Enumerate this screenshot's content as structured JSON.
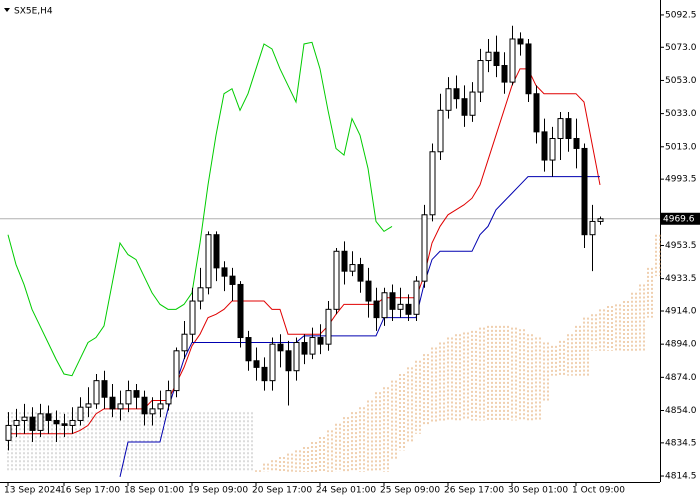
{
  "chart_data": {
    "type": "candlestick",
    "title": "SX5E,H4",
    "categories": [
      "13 Sep 2024",
      null,
      null,
      null,
      null,
      null,
      null,
      "16 Sep 17:00",
      null,
      null,
      null,
      null,
      null,
      null,
      null,
      "18 Sep 01:00",
      null,
      null,
      null,
      null,
      null,
      null,
      null,
      "19 Sep 09:00",
      null,
      null,
      null,
      null,
      null,
      null,
      null,
      "20 Sep 17:00",
      null,
      null,
      null,
      null,
      null,
      null,
      null,
      "24 Sep 01:00",
      null,
      null,
      null,
      null,
      null,
      null,
      null,
      "25 Sep 09:00",
      null,
      null,
      null,
      null,
      null,
      null,
      null,
      "26 Sep 17:00",
      null,
      null,
      null,
      null,
      null,
      null,
      null,
      "30 Sep 01:00",
      null,
      null,
      null,
      null,
      null,
      null,
      null,
      "1 Oct 09:00",
      null,
      null,
      null,
      null,
      null,
      null,
      null,
      null,
      null,
      null
    ],
    "open": [
      4836,
      4845,
      4848,
      4850,
      4842,
      4852,
      4848,
      4846,
      4845,
      4848,
      4856,
      4858,
      4872,
      4862,
      4855,
      4858,
      4866,
      4862,
      4852,
      4855,
      4858,
      4866,
      4890,
      4900,
      4920,
      4928,
      4960,
      4940,
      4935,
      4930,
      4898,
      4884,
      4880,
      4872,
      4894,
      4890,
      4878,
      4895,
      4888,
      4898,
      4894,
      4915,
      4950,
      4938,
      4942,
      4932,
      4920,
      4910,
      4925,
      4915,
      4918,
      4912,
      4932,
      4972,
      5010,
      5035,
      5048,
      5042,
      5032,
      5046,
      5065,
      5070,
      5062,
      5052,
      5078,
      5075,
      5045,
      5022,
      5005,
      5018,
      5030,
      5018,
      5012,
      4960,
      4968,
      null,
      null,
      null,
      null,
      null,
      null,
      null
    ],
    "high": [
      4853,
      4855,
      4858,
      4856,
      4858,
      4857,
      4854,
      4852,
      4856,
      4862,
      4868,
      4876,
      4878,
      4870,
      4866,
      4872,
      4870,
      4866,
      4862,
      4866,
      4872,
      4892,
      4908,
      4928,
      4940,
      4962,
      4962,
      4944,
      4940,
      4932,
      4902,
      4892,
      4886,
      4898,
      4900,
      4896,
      4898,
      4900,
      4904,
      4906,
      4920,
      4952,
      4956,
      4950,
      4946,
      4940,
      4928,
      4928,
      4930,
      4928,
      4924,
      4935,
      4978,
      5015,
      5045,
      5055,
      5056,
      5050,
      5052,
      5072,
      5078,
      5080,
      5070,
      5086,
      5082,
      5078,
      5050,
      5030,
      5025,
      5034,
      5034,
      5030,
      5015,
      4978,
      4971,
      null,
      null,
      null,
      null,
      null,
      null,
      null
    ],
    "low": [
      4830,
      4838,
      4840,
      4835,
      4838,
      4840,
      4835,
      4838,
      4840,
      4845,
      4850,
      4855,
      4855,
      4850,
      4848,
      4853,
      4855,
      4845,
      4845,
      4850,
      4854,
      4862,
      4885,
      4895,
      4915,
      4924,
      4932,
      4926,
      4920,
      4892,
      4878,
      4872,
      4866,
      4866,
      4880,
      4857,
      4872,
      4882,
      4885,
      4888,
      4890,
      4912,
      4930,
      4935,
      4925,
      4910,
      4902,
      4905,
      4908,
      4910,
      4908,
      4908,
      4928,
      4968,
      5005,
      5030,
      5036,
      5025,
      5028,
      5040,
      5058,
      5055,
      5045,
      5050,
      5068,
      5040,
      5015,
      4998,
      4995,
      5005,
      5010,
      5000,
      4952,
      4938,
      4966,
      null,
      null,
      null,
      null,
      null,
      null,
      null
    ],
    "close": [
      4845,
      4848,
      4850,
      4842,
      4852,
      4848,
      4846,
      4845,
      4848,
      4856,
      4858,
      4872,
      4862,
      4855,
      4858,
      4866,
      4862,
      4852,
      4855,
      4858,
      4866,
      4890,
      4900,
      4920,
      4928,
      4960,
      4940,
      4935,
      4930,
      4898,
      4884,
      4880,
      4872,
      4894,
      4890,
      4878,
      4895,
      4888,
      4898,
      4894,
      4915,
      4950,
      4938,
      4942,
      4932,
      4920,
      4910,
      4925,
      4915,
      4918,
      4912,
      4932,
      4972,
      5010,
      5035,
      5048,
      5042,
      5032,
      5046,
      5065,
      5070,
      5062,
      5052,
      5078,
      5075,
      5045,
      5022,
      5005,
      5018,
      5030,
      5018,
      5012,
      4960,
      4968,
      4969.6,
      null,
      null,
      null,
      null,
      null,
      null,
      null
    ],
    "up_color": "#ffffff",
    "down_color": "#000000",
    "series": [
      {
        "color": "#e00000",
        "values": [
          4840,
          4840,
          4840,
          4840,
          4840,
          4840,
          4840,
          4840,
          4840,
          4842,
          4845,
          4852,
          4855,
          4855,
          4855,
          4855,
          4855,
          4855,
          4860,
          4860,
          4860,
          4870,
          4880,
          4893,
          4900,
          4910,
          4912,
          4915,
          4920,
          4920,
          4920,
          4920,
          4920,
          4915,
          4915,
          4900,
          4900,
          4900,
          4900,
          4900,
          4905,
          4912,
          4918,
          4918,
          4918,
          4918,
          4918,
          4922,
          4922,
          4922,
          4922,
          4922,
          4935,
          4955,
          4965,
          4972,
          4975,
          4978,
          4982,
          4990,
          5005,
          5020,
          5035,
          5050,
          5060,
          5060,
          5050,
          5045,
          5045,
          5045,
          5045,
          5045,
          5040,
          5015,
          4990,
          null,
          null,
          null,
          null,
          null,
          null,
          null
        ]
      },
      {
        "color": "#0000b0",
        "values": [
          null,
          null,
          null,
          null,
          null,
          null,
          null,
          null,
          null,
          null,
          null,
          null,
          null,
          null,
          4814,
          4835,
          4835,
          4835,
          4835,
          4835,
          4855,
          4870,
          4885,
          4895,
          4895,
          4895,
          4895,
          4895,
          4895,
          4895,
          4895,
          4895,
          4895,
          4895,
          4895,
          4895,
          4895,
          4899,
          4899,
          4899,
          4899,
          4899,
          4899,
          4899,
          4899,
          4899,
          4899,
          4910,
          4910,
          4910,
          4910,
          4910,
          4930,
          4945,
          4950,
          4950,
          4950,
          4950,
          4950,
          4960,
          4965,
          4975,
          4980,
          4985,
          4990,
          4995,
          4995,
          4995,
          4995,
          4995,
          4995,
          4995,
          4995,
          4995,
          4995,
          null,
          null,
          null,
          null,
          null,
          null,
          null
        ]
      },
      {
        "color": "#00cc00",
        "values": [
          4960,
          4942,
          4930,
          4915,
          4905,
          4895,
          4885,
          4876,
          4875,
          4885,
          4895,
          4898,
          4905,
          4930,
          4955,
          4948,
          4945,
          4935,
          4925,
          4918,
          4915,
          4915,
          4918,
          4925,
          4955,
          4990,
          5020,
          5045,
          5048,
          5035,
          5045,
          5060,
          5075,
          5072,
          5060,
          5050,
          5040,
          5075,
          5076,
          5060,
          5035,
          5012,
          5008,
          5030,
          5020,
          5000,
          4968,
          4962,
          4965,
          null,
          null,
          null,
          null,
          null,
          null,
          null,
          null,
          null,
          null,
          null,
          null,
          null,
          null,
          null,
          null,
          null,
          null,
          null,
          null,
          null,
          null,
          null,
          null,
          null,
          null,
          null,
          null,
          null,
          null,
          null,
          null,
          null
        ]
      }
    ],
    "cloud": {
      "up_color": "#e0a060",
      "down_color": "#b8b8b8",
      "span_a": [
        4818,
        4818,
        4818,
        4818,
        4818,
        4818,
        4818,
        4818,
        4818,
        4818,
        4818,
        4818,
        4818,
        4818,
        4818,
        4818,
        4818,
        4818,
        4818,
        4818,
        4818,
        4818,
        4818,
        4818,
        4818,
        4818,
        4818,
        4818,
        4818,
        4818,
        4818,
        4818,
        4822,
        4824,
        4826,
        4828,
        4830,
        4832,
        4835,
        4838,
        4842,
        4846,
        4850,
        4853,
        4856,
        4860,
        4865,
        4868,
        4872,
        4876,
        4880,
        4884,
        4888,
        4892,
        4895,
        4898,
        4900,
        4901,
        4902,
        4904,
        4905,
        4905,
        4905,
        4904,
        4903,
        4900,
        4898,
        4895,
        4893,
        4896,
        4900,
        4905,
        4910,
        4912,
        4915,
        4917,
        4918,
        4920,
        4925,
        4930,
        4940,
        4960
      ],
      "span_b": [
        4854,
        4854,
        4854,
        4854,
        4854,
        4854,
        4854,
        4854,
        4854,
        4854,
        4854,
        4854,
        4854,
        4854,
        4854,
        4854,
        4854,
        4854,
        4854,
        4854,
        4854,
        4854,
        4854,
        4854,
        4854,
        4854,
        4854,
        4854,
        4854,
        4854,
        4854,
        4817,
        4817,
        4817,
        4817,
        4817,
        4817,
        4817,
        4817,
        4817,
        4817,
        4817,
        4817,
        4817,
        4817,
        4817,
        4817,
        4817,
        4825,
        4830,
        4835,
        4840,
        4845,
        4847,
        4848,
        4848,
        4848,
        4848,
        4848,
        4848,
        4848,
        4848,
        4848,
        4848,
        4848,
        4848,
        4848,
        4860,
        4875,
        4875,
        4875,
        4875,
        4875,
        4890,
        4890,
        4890,
        4890,
        4890,
        4890,
        4890,
        4910,
        4935
      ]
    },
    "last_price": 4969.6,
    "price_line_color": "#b0b0b0",
    "ylim": [
      4810.9,
      5101.5
    ],
    "yticks": [
      5092.5,
      {
        "value": 5073,
        "label": "5073.0"
      },
      {
        "value": 5053,
        "label": "5053.0"
      },
      {
        "value": 5033,
        "label": "5033.0"
      },
      {
        "value": 5013,
        "label": "5013.0"
      },
      4993.5,
      4953.5,
      4933.5,
      {
        "value": 4914,
        "label": "4914.0"
      },
      {
        "value": 4894,
        "label": "4894.0"
      },
      {
        "value": 4874,
        "label": "4874.0"
      },
      {
        "value": 4854,
        "label": "4854.0"
      },
      4834.5,
      4814.5
    ]
  }
}
